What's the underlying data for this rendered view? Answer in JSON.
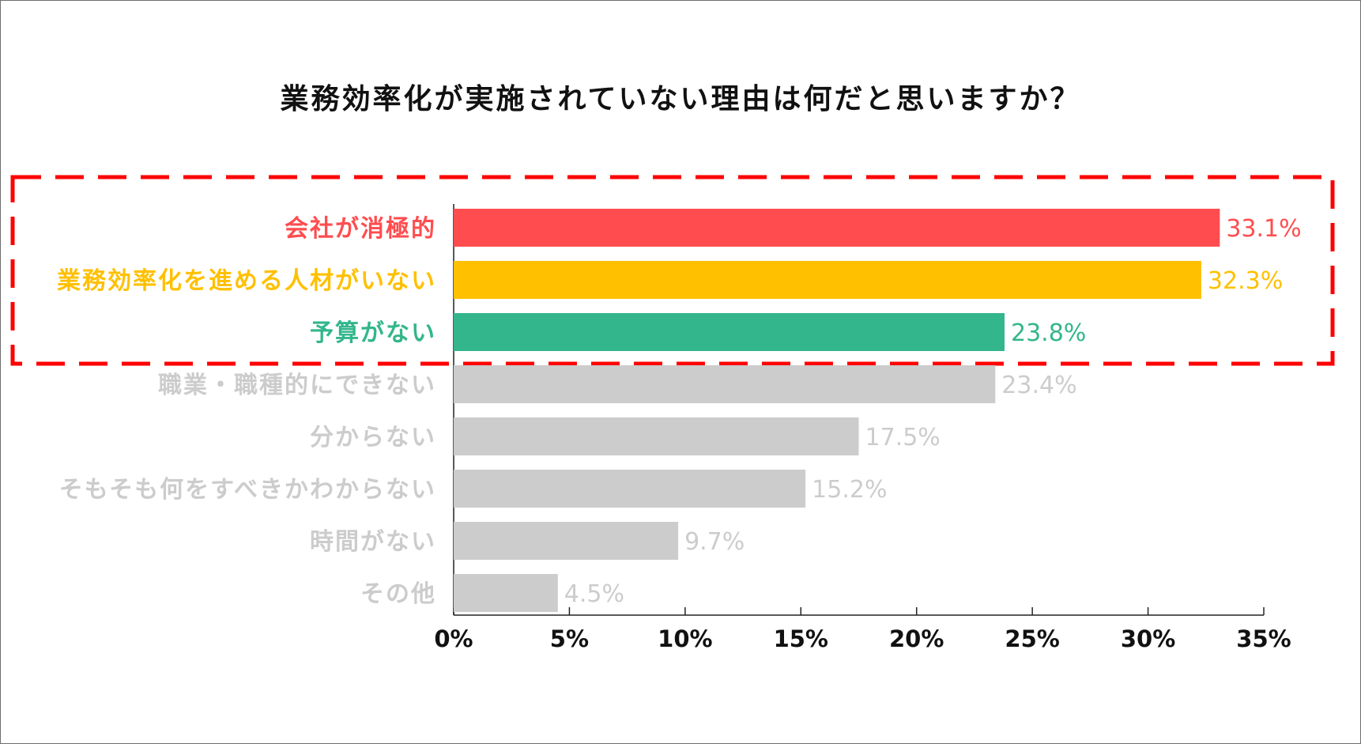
{
  "chart_data": {
    "type": "bar",
    "orientation": "horizontal",
    "title": "業務効率化が実施されていない理由は何だと思いますか？",
    "categories": [
      "会社が消極的",
      "業務効率化を進める人材がいない",
      "予算がない",
      "職業・職種的にできない",
      "分からない",
      "そもそも何をすべきかわからない",
      "時間がない",
      "その他"
    ],
    "values": [
      33.1,
      32.3,
      23.8,
      23.4,
      17.5,
      15.2,
      9.7,
      4.5
    ],
    "value_labels": [
      "33.1%",
      "32.3%",
      "23.8%",
      "23.4%",
      "17.5%",
      "15.2%",
      "9.7%",
      "4.5%"
    ],
    "bar_colors": [
      "#ff4d4f",
      "#ffc000",
      "#33b68c",
      "#cccccc",
      "#cccccc",
      "#cccccc",
      "#cccccc",
      "#cccccc"
    ],
    "label_colors": [
      "#ff4d4f",
      "#ffc000",
      "#33b68c",
      "#cccccc",
      "#cccccc",
      "#cccccc",
      "#cccccc",
      "#cccccc"
    ],
    "highlight_color": "#ff0000",
    "highlight_count": 3,
    "xlim": [
      0,
      35
    ],
    "xticks": [
      0,
      5,
      10,
      15,
      20,
      25,
      30,
      35
    ],
    "xtick_labels": [
      "0%",
      "5%",
      "10%",
      "15%",
      "20%",
      "25%",
      "30%",
      "35%"
    ],
    "xlabel": "",
    "ylabel": ""
  }
}
